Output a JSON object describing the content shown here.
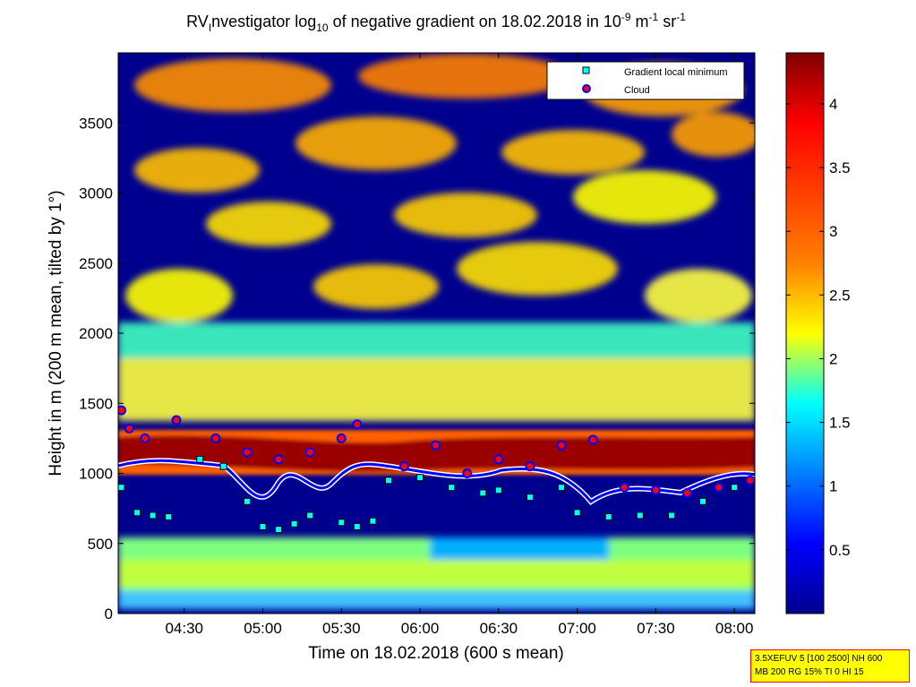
{
  "chart_data": {
    "type": "heatmap",
    "title": {
      "prefix": "RV",
      "prefix_sub": "I",
      "part1": "nvestigator log",
      "sub10": "10",
      "part2": " of negative gradient on 18.02.2018 in 10",
      "sup1": "-9",
      "part3": " m",
      "sup2": "-1",
      "part4": " sr",
      "sup3": "-1"
    },
    "xlabel": "Time on 18.02.2018 (600 s mean)",
    "ylabel": "Height in m (200 m mean, tilted by 1°)",
    "xlim_hours": [
      4.08,
      8.13
    ],
    "ylim": [
      0,
      4000
    ],
    "x_ticks": [
      {
        "value": 4.5,
        "label": "04:30"
      },
      {
        "value": 5.0,
        "label": "05:00"
      },
      {
        "value": 5.5,
        "label": "05:30"
      },
      {
        "value": 6.0,
        "label": "06:00"
      },
      {
        "value": 6.5,
        "label": "06:30"
      },
      {
        "value": 7.0,
        "label": "07:00"
      },
      {
        "value": 7.5,
        "label": "07:30"
      },
      {
        "value": 8.0,
        "label": "08:00"
      }
    ],
    "y_ticks": [
      {
        "value": 0,
        "label": "0"
      },
      {
        "value": 500,
        "label": "500"
      },
      {
        "value": 1000,
        "label": "1000"
      },
      {
        "value": 1500,
        "label": "1500"
      },
      {
        "value": 2000,
        "label": "2000"
      },
      {
        "value": 2500,
        "label": "2500"
      },
      {
        "value": 3000,
        "label": "3000"
      },
      {
        "value": 3500,
        "label": "3500"
      }
    ],
    "colorbar": {
      "range": [
        0,
        4.4
      ],
      "ticks": [
        {
          "value": 0.5,
          "label": "0.5"
        },
        {
          "value": 1,
          "label": "1"
        },
        {
          "value": 1.5,
          "label": "1.5"
        },
        {
          "value": 2,
          "label": "2"
        },
        {
          "value": 2.5,
          "label": "2.5"
        },
        {
          "value": 3,
          "label": "3"
        },
        {
          "value": 3.5,
          "label": "3.5"
        },
        {
          "value": 4,
          "label": "4"
        }
      ],
      "colors": [
        "#00008f",
        "#0000ff",
        "#00ffff",
        "#ffff00",
        "#ff8000",
        "#ff0000",
        "#800000"
      ]
    },
    "legend": {
      "placement": "top-right",
      "entries": [
        {
          "label": "Gradient local minimum",
          "marker": "square",
          "color": "#00ffff"
        },
        {
          "label": "Cloud",
          "marker": "circle",
          "color": "#ff0000",
          "edge": "#0000ff"
        }
      ]
    },
    "series": [
      {
        "name": "Gradient local minimum",
        "x": [
          4.1,
          4.2,
          4.3,
          4.4,
          4.6,
          4.75,
          4.9,
          5.0,
          5.1,
          5.2,
          5.3,
          5.5,
          5.6,
          5.7,
          5.8,
          6.0,
          6.2,
          6.4,
          6.5,
          6.7,
          6.9,
          7.0,
          7.2,
          7.4,
          7.6,
          7.8,
          8.0,
          8.1
        ],
        "y": [
          900,
          720,
          700,
          690,
          1100,
          1050,
          800,
          620,
          600,
          640,
          700,
          650,
          620,
          660,
          950,
          970,
          900,
          860,
          880,
          830,
          900,
          720,
          690,
          700,
          700,
          800,
          900,
          950
        ]
      },
      {
        "name": "Cloud",
        "x": [
          4.1,
          4.15,
          4.25,
          4.45,
          4.7,
          4.9,
          5.1,
          5.3,
          5.5,
          5.6,
          5.9,
          6.1,
          6.3,
          6.5,
          6.7,
          6.9,
          7.1,
          7.3,
          7.5,
          7.7,
          7.9,
          8.1
        ],
        "y": [
          1450,
          1320,
          1250,
          1380,
          1250,
          1150,
          1100,
          1150,
          1250,
          1350,
          1050,
          1200,
          1000,
          1100,
          1050,
          1200,
          1240,
          900,
          880,
          860,
          900,
          950
        ]
      }
    ],
    "annotation_box": {
      "line1": "3.5XEFUV 5 [100 2500] NH 600",
      "line2": "MB 200 RG 15% TI 0 HI 15"
    }
  }
}
